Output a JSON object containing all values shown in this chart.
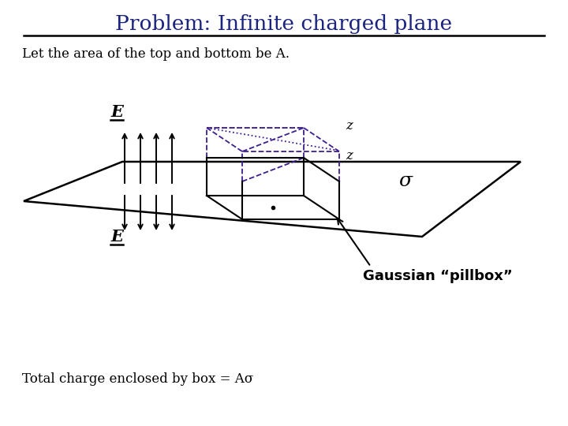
{
  "title": "Problem: Infinite charged plane",
  "title_color": "#1a237e",
  "subtitle": "Let the area of the top and bottom be A.",
  "footer": "Total charge enclosed by box = Aσ",
  "gaussian_label": "Gaussian “pillbox”",
  "sigma_label": "σ",
  "E_label": "E",
  "bg_color": "#ffffff",
  "box_solid_color": "#000000",
  "box_dashed_color": "#3d1e8f",
  "box_dotted_color": "#3d1e8f"
}
